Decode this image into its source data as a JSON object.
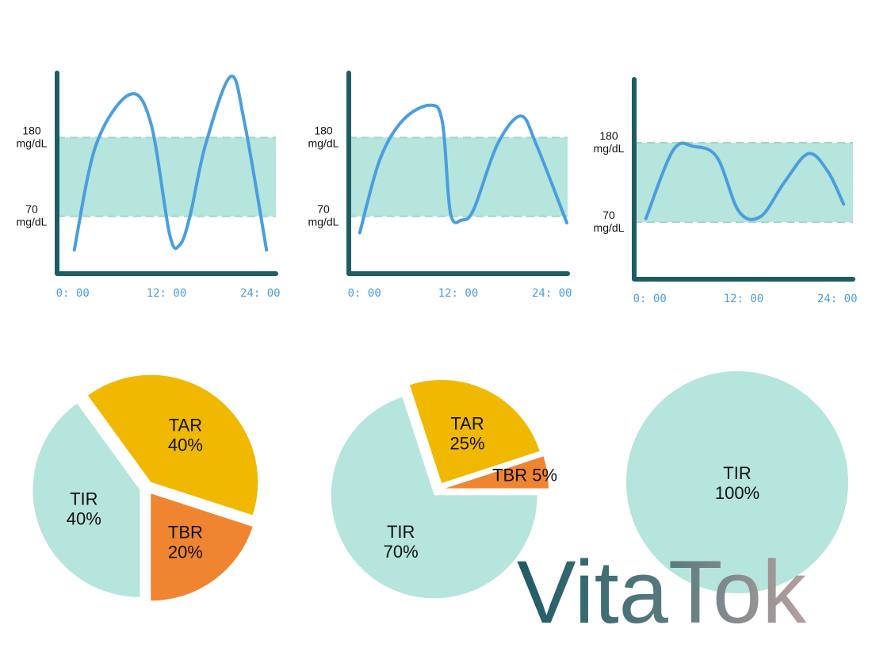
{
  "chart_data": [
    {
      "type": "line",
      "x": [
        0.2,
        3,
        7.3,
        10,
        12.4,
        13.7,
        15,
        17,
        20.2,
        22,
        24.8
      ],
      "series": [
        {
          "color": "#4a9ede",
          "values": [
            23,
            170,
            240,
            200,
            45,
            30,
            70,
            170,
            265,
            200,
            23
          ]
        }
      ],
      "xlim": [
        -2,
        26
      ],
      "ylim": [
        -10,
        270
      ],
      "xticks": [
        {
          "value": 0,
          "label": "0: 00"
        },
        {
          "value": 12,
          "label": "12: 00"
        },
        {
          "value": 24,
          "label": "24: 00"
        }
      ],
      "yticks": [
        {
          "value": 70,
          "label": "70 mg/dL"
        },
        {
          "value": 180,
          "label": "180 mg/dL"
        }
      ]
    },
    {
      "type": "line",
      "x": [
        -0.6,
        2,
        5,
        8.5,
        10,
        11,
        12.5,
        14,
        17,
        20,
        22,
        25.9
      ],
      "series": [
        {
          "color": "#4a9ede",
          "values": [
            47,
            150,
            205,
            225,
            200,
            75,
            65,
            80,
            170,
            210,
            170,
            61
          ]
        }
      ],
      "xlim": [
        -2,
        26
      ],
      "ylim": [
        -10,
        270
      ],
      "xticks": [
        {
          "value": 0,
          "label": "0: 00"
        },
        {
          "value": 12,
          "label": "12: 00"
        },
        {
          "value": 24,
          "label": "24: 00"
        }
      ],
      "yticks": [
        {
          "value": 70,
          "label": "70 mg/dL"
        },
        {
          "value": 180,
          "label": "180 mg/dL"
        }
      ]
    },
    {
      "type": "line",
      "x": [
        -0.5,
        3,
        5.6,
        8.6,
        11.4,
        14.2,
        17.2,
        20.3,
        22.8,
        24.8
      ],
      "series": [
        {
          "color": "#4a9ede",
          "values": [
            75,
            170,
            175,
            160,
            85,
            78,
            125,
            165,
            140,
            95
          ]
        }
      ],
      "xlim": [
        -2,
        26
      ],
      "ylim": [
        -9,
        268
      ],
      "xticks": [
        {
          "value": 0,
          "label": "0: 00"
        },
        {
          "value": 12,
          "label": "12: 00"
        },
        {
          "value": 24,
          "label": "24: 00"
        }
      ],
      "yticks": [
        {
          "value": 70,
          "label": "70 mg/dL"
        },
        {
          "value": 180,
          "label": "180 mg/dL"
        }
      ]
    },
    {
      "type": "pie",
      "categories": [
        "TAR",
        "TBR",
        "TIR"
      ],
      "values": [
        40,
        20,
        40
      ],
      "value_labels": [
        "40%",
        "20%",
        "40%"
      ],
      "colors": [
        "#f0b800",
        "#ef8431",
        "#b5e5dc"
      ]
    },
    {
      "type": "pie",
      "categories": [
        "TAR",
        "TBR",
        "TIR"
      ],
      "values": [
        25,
        5,
        70
      ],
      "value_labels": [
        "25%",
        "5%",
        "70%"
      ],
      "colors": [
        "#f0b800",
        "#ef8431",
        "#b5e5dc"
      ]
    },
    {
      "type": "pie",
      "categories": [
        "TIR"
      ],
      "values": [
        100
      ],
      "value_labels": [
        "100%"
      ],
      "colors": [
        "#b5e5dc"
      ]
    }
  ],
  "logo": "VitaTok"
}
